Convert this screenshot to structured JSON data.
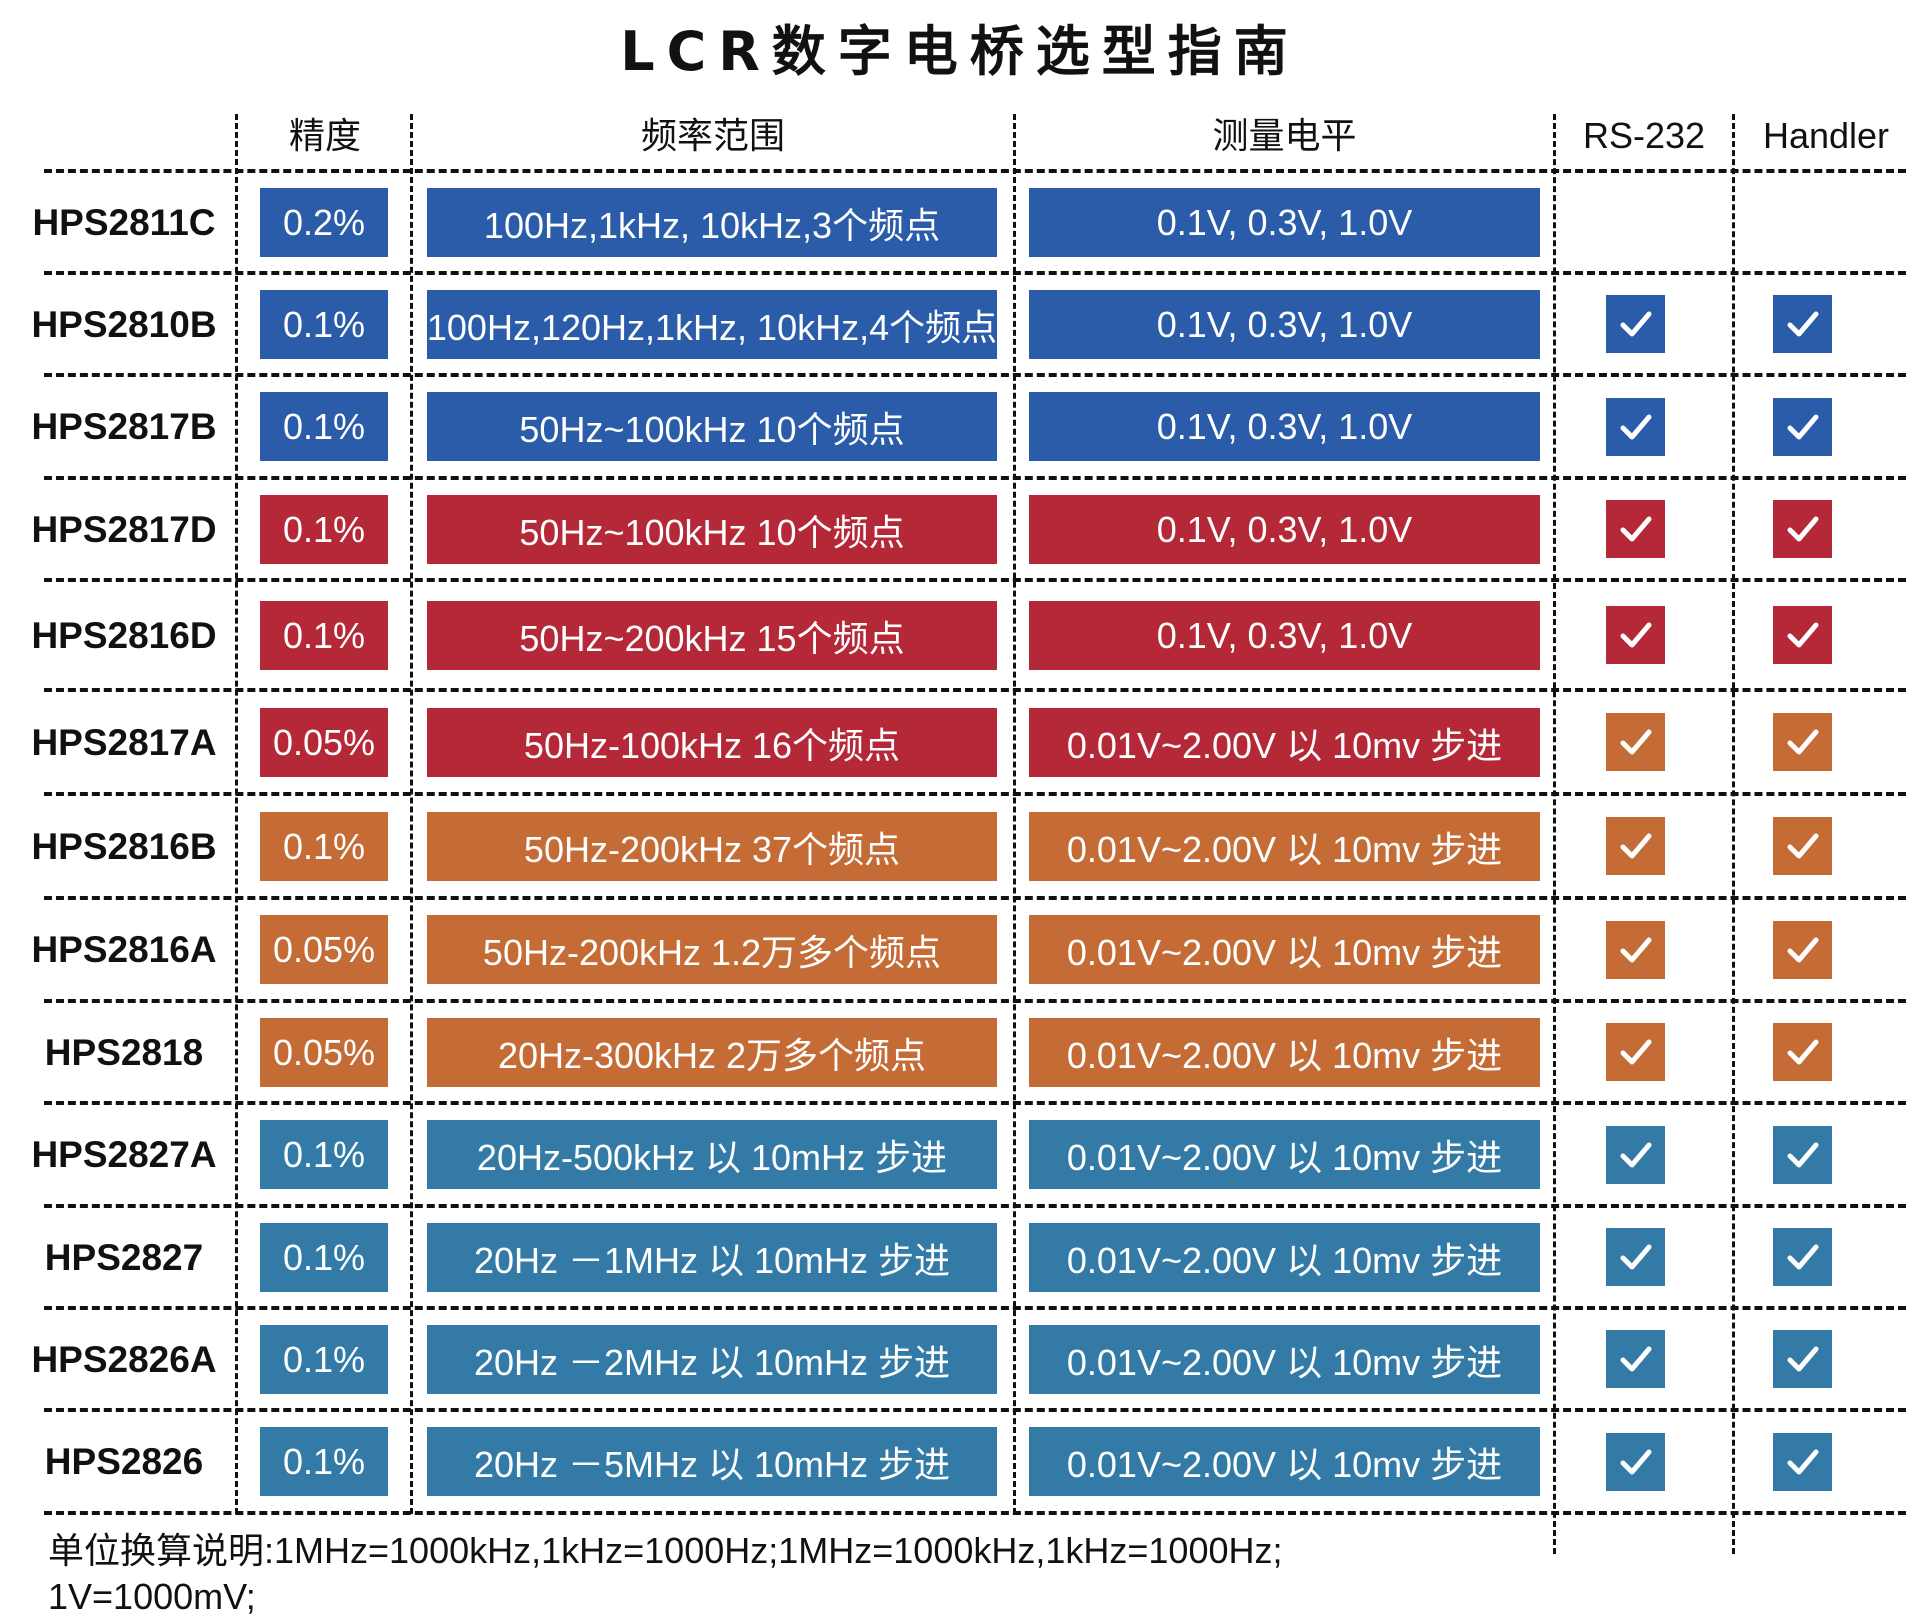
{
  "title": "LCR数字电桥选型指南",
  "columns": {
    "precision": "精度",
    "frequency": "频率范围",
    "level": "测量电平",
    "rs232": "RS-232",
    "handler": "Handler"
  },
  "colors": {
    "blue": "#2a5caa",
    "red": "#b52837",
    "orange": "#c46b36",
    "teal": "#337ba6"
  },
  "rows": [
    {
      "model": "HPS2811C",
      "precision": "0.2%",
      "frequency": "100Hz,1kHz, 10kHz,3个频点",
      "level": "0.1V, 0.3V, 1.0V",
      "rs232": false,
      "handler": false,
      "color": "blue",
      "check_color": "blue"
    },
    {
      "model": "HPS2810B",
      "precision": "0.1%",
      "frequency": "100Hz,120Hz,1kHz, 10kHz,4个频点",
      "level": "0.1V, 0.3V, 1.0V",
      "rs232": true,
      "handler": true,
      "color": "blue",
      "check_color": "blue"
    },
    {
      "model": "HPS2817B",
      "precision": "0.1%",
      "frequency": "50Hz~100kHz  10个频点",
      "level": "0.1V, 0.3V, 1.0V",
      "rs232": true,
      "handler": true,
      "color": "blue",
      "check_color": "blue"
    },
    {
      "model": "HPS2817D",
      "precision": "0.1%",
      "frequency": "50Hz~100kHz  10个频点",
      "level": "0.1V, 0.3V, 1.0V",
      "rs232": true,
      "handler": true,
      "color": "red",
      "check_color": "red"
    },
    {
      "model": "HPS2816D",
      "precision": "0.1%",
      "frequency": "50Hz~200kHz  15个频点",
      "level": "0.1V, 0.3V, 1.0V",
      "rs232": true,
      "handler": true,
      "color": "red",
      "check_color": "red"
    },
    {
      "model": "HPS2817A",
      "precision": "0.05%",
      "frequency": "50Hz-100kHz  16个频点",
      "level": "0.01V~2.00V 以 10mv 步进",
      "rs232": true,
      "handler": true,
      "color": "red",
      "check_color": "orange"
    },
    {
      "model": "HPS2816B",
      "precision": "0.1%",
      "frequency": "50Hz-200kHz  37个频点",
      "level": "0.01V~2.00V 以 10mv 步进",
      "rs232": true,
      "handler": true,
      "color": "orange",
      "check_color": "orange"
    },
    {
      "model": "HPS2816A",
      "precision": "0.05%",
      "frequency": "50Hz-200kHz  1.2万多个频点",
      "level": "0.01V~2.00V 以 10mv 步进",
      "rs232": true,
      "handler": true,
      "color": "orange",
      "check_color": "orange"
    },
    {
      "model": "HPS2818",
      "precision": "0.05%",
      "frequency": "20Hz-300kHz  2万多个频点",
      "level": "0.01V~2.00V 以 10mv 步进",
      "rs232": true,
      "handler": true,
      "color": "orange",
      "check_color": "orange"
    },
    {
      "model": "HPS2827A",
      "precision": "0.1%",
      "frequency": "20Hz-500kHz 以 10mHz 步进",
      "level": "0.01V~2.00V 以 10mv 步进",
      "rs232": true,
      "handler": true,
      "color": "teal",
      "check_color": "teal"
    },
    {
      "model": "HPS2827",
      "precision": "0.1%",
      "frequency": "20Hz －1MHz 以 10mHz 步进",
      "level": "0.01V~2.00V 以 10mv 步进",
      "rs232": true,
      "handler": true,
      "color": "teal",
      "check_color": "teal"
    },
    {
      "model": "HPS2826A",
      "precision": "0.1%",
      "frequency": "20Hz －2MHz 以 10mHz 步进",
      "level": "0.01V~2.00V 以 10mv 步进",
      "rs232": true,
      "handler": true,
      "color": "teal",
      "check_color": "teal"
    },
    {
      "model": "HPS2826",
      "precision": "0.1%",
      "frequency": "20Hz －5MHz 以 10mHz 步进",
      "level": "0.01V~2.00V 以 10mv 步进",
      "rs232": true,
      "handler": true,
      "color": "teal",
      "check_color": "teal"
    }
  ],
  "footer": {
    "line1": "单位换算说明:1MHz=1000kHz,1kHz=1000Hz;1MHz=1000kHz,1kHz=1000Hz;",
    "line2": "1V=1000mV;"
  }
}
